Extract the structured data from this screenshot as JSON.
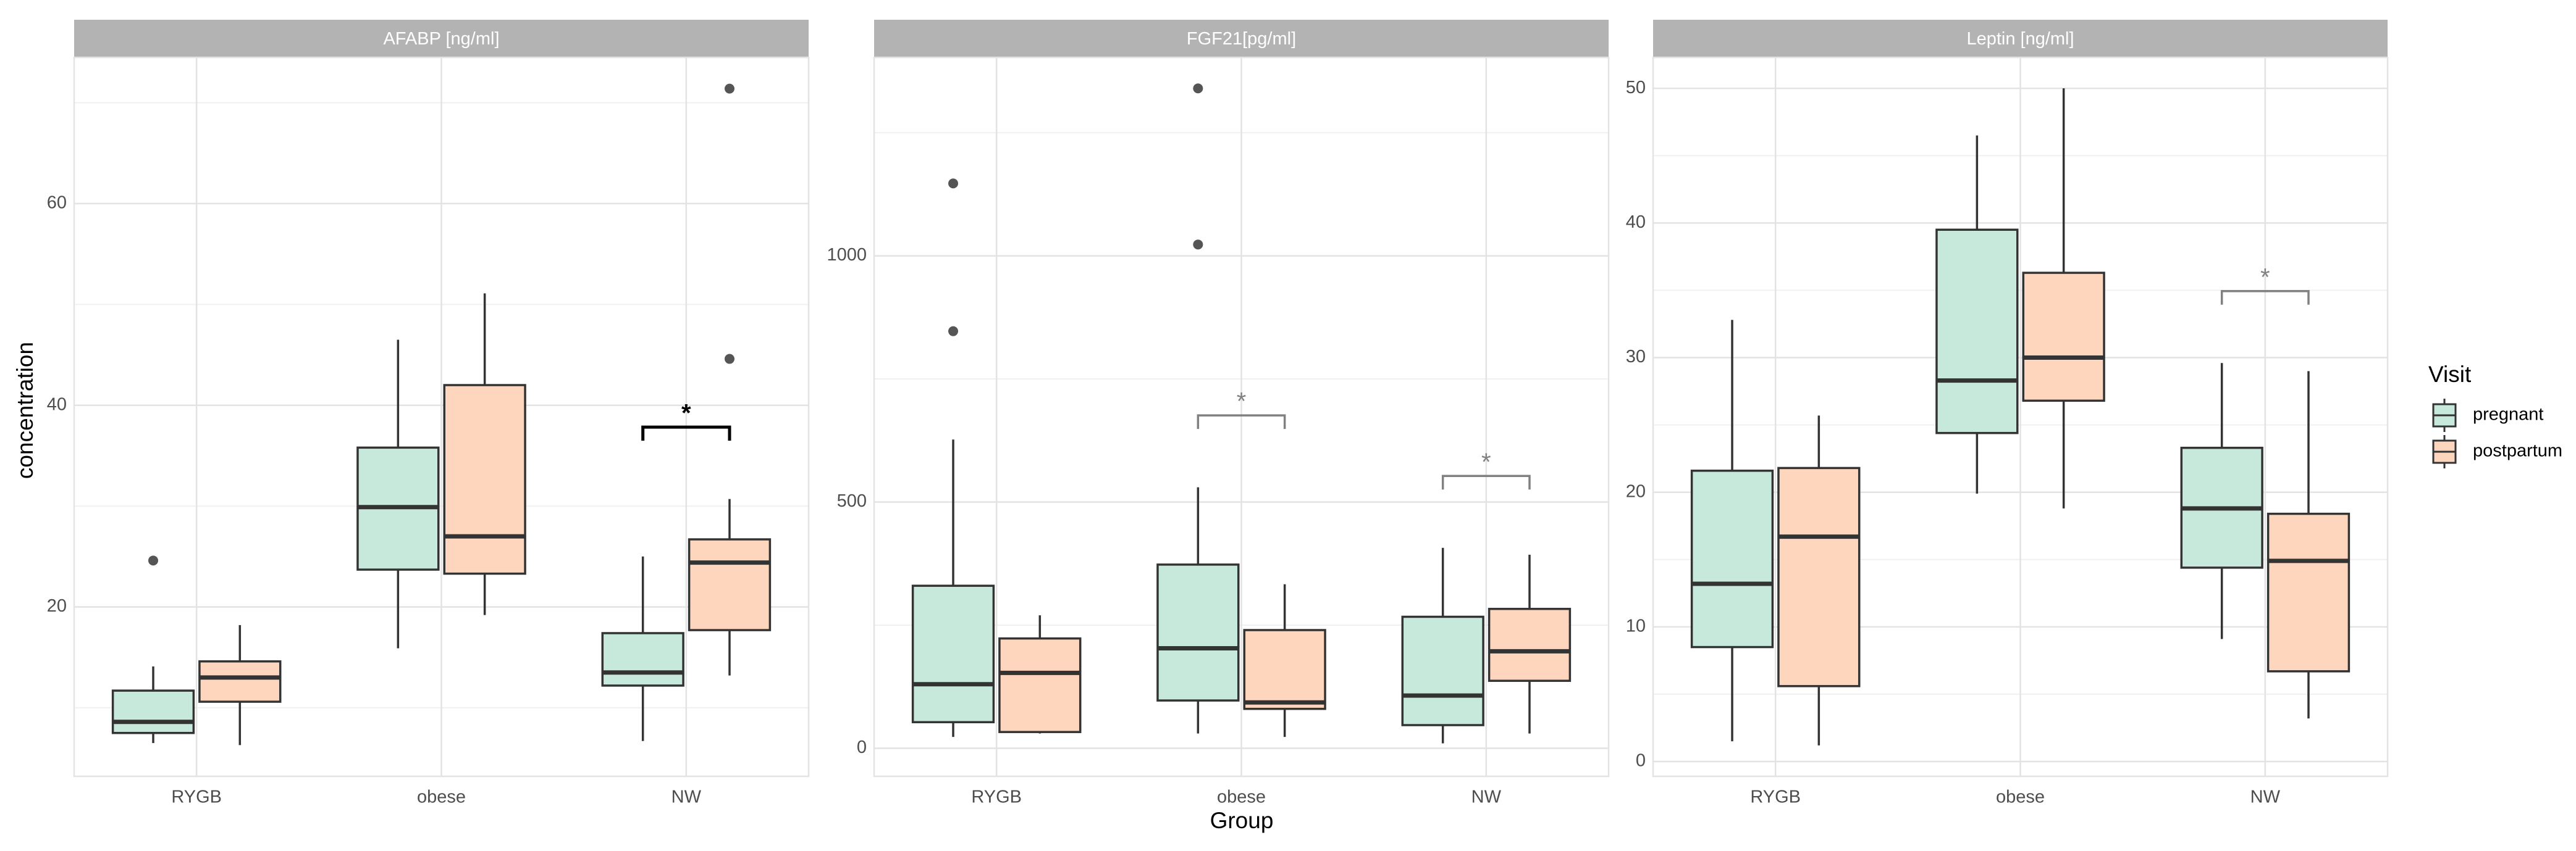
{
  "ylabel": "concentration",
  "xlabel": "Group",
  "legend_title": "Visit",
  "chart_data": [
    {
      "type": "box",
      "title": "AFABP [ng/ml]",
      "categories": [
        "RYGB",
        "obese",
        "NW"
      ],
      "ylim": [
        3.2,
        74.5
      ],
      "yticks": [
        20,
        40,
        60
      ],
      "grid": true,
      "annotation_color": "#000000",
      "series": [
        {
          "name": "pregnant",
          "color": "#c6e9dc",
          "values": [
            {
              "min": 6.5,
              "q1": 7.5,
              "median": 8.6,
              "q3": 11.7,
              "max": 14.1,
              "outliers": [
                24.6
              ]
            },
            {
              "min": 15.9,
              "q1": 23.7,
              "median": 29.9,
              "q3": 35.8,
              "max": 46.5,
              "outliers": []
            },
            {
              "min": 6.7,
              "q1": 12.2,
              "median": 13.5,
              "q3": 17.4,
              "max": 25.0,
              "outliers": []
            }
          ]
        },
        {
          "name": "postpartum",
          "color": "#fdd6bd",
          "values": [
            {
              "min": 6.3,
              "q1": 10.6,
              "median": 13.0,
              "q3": 14.6,
              "max": 18.2,
              "outliers": []
            },
            {
              "min": 19.2,
              "q1": 23.3,
              "median": 27.0,
              "q3": 42.0,
              "max": 51.1,
              "outliers": []
            },
            {
              "min": 13.2,
              "q1": 17.7,
              "median": 24.4,
              "q3": 26.7,
              "max": 30.7,
              "outliers": [
                44.6,
                71.4
              ]
            }
          ]
        }
      ],
      "annotations": [
        {
          "category": "NW",
          "text": "*"
        }
      ]
    },
    {
      "type": "box",
      "title": "FGF21[pg/ml]",
      "categories": [
        "RYGB",
        "obese",
        "NW"
      ],
      "ylim": [
        -57,
        1403
      ],
      "yticks": [
        0,
        500,
        1000
      ],
      "grid": true,
      "annotation_color": "#808080",
      "series": [
        {
          "name": "pregnant",
          "color": "#c6e9dc",
          "values": [
            {
              "min": 23,
              "q1": 53,
              "median": 130,
              "q3": 330,
              "max": 627,
              "outliers": [
                847,
                1147
              ]
            },
            {
              "min": 30,
              "q1": 97,
              "median": 203,
              "q3": 373,
              "max": 530,
              "outliers": [
                1023,
                1340
              ]
            },
            {
              "min": 10,
              "q1": 47,
              "median": 107,
              "q3": 267,
              "max": 407,
              "outliers": []
            }
          ]
        },
        {
          "name": "postpartum",
          "color": "#fdd6bd",
          "values": [
            {
              "min": 30,
              "q1": 33,
              "median": 153,
              "q3": 223,
              "max": 270,
              "outliers": []
            },
            {
              "min": 23,
              "q1": 80,
              "median": 93,
              "q3": 240,
              "max": 333,
              "outliers": []
            },
            {
              "min": 30,
              "q1": 137,
              "median": 197,
              "q3": 283,
              "max": 393,
              "outliers": []
            }
          ]
        }
      ],
      "annotations": [
        {
          "category": "obese",
          "text": "*"
        },
        {
          "category": "NW",
          "text": "*"
        }
      ]
    },
    {
      "type": "box",
      "title": "Leptin [ng/ml]",
      "categories": [
        "RYGB",
        "obese",
        "NW"
      ],
      "ylim": [
        -1.1,
        52.3
      ],
      "yticks": [
        0,
        10,
        20,
        30,
        40,
        50
      ],
      "grid": true,
      "annotation_color": "#808080",
      "series": [
        {
          "name": "pregnant",
          "color": "#c6e9dc",
          "values": [
            {
              "min": 1.5,
              "q1": 8.5,
              "median": 13.2,
              "q3": 21.6,
              "max": 32.8,
              "outliers": []
            },
            {
              "min": 19.9,
              "q1": 24.4,
              "median": 28.3,
              "q3": 39.5,
              "max": 46.5,
              "outliers": []
            },
            {
              "min": 9.1,
              "q1": 14.4,
              "median": 18.8,
              "q3": 23.3,
              "max": 29.6,
              "outliers": []
            }
          ]
        },
        {
          "name": "postpartum",
          "color": "#fdd6bd",
          "values": [
            {
              "min": 1.2,
              "q1": 5.6,
              "median": 16.7,
              "q3": 21.8,
              "max": 25.7,
              "outliers": []
            },
            {
              "min": 18.8,
              "q1": 26.8,
              "median": 30.0,
              "q3": 36.3,
              "max": 50.0,
              "outliers": []
            },
            {
              "min": 3.2,
              "q1": 6.7,
              "median": 14.9,
              "q3": 18.4,
              "max": 29.0,
              "outliers": []
            }
          ]
        }
      ],
      "annotations": [
        {
          "category": "NW",
          "text": "*"
        }
      ]
    }
  ]
}
